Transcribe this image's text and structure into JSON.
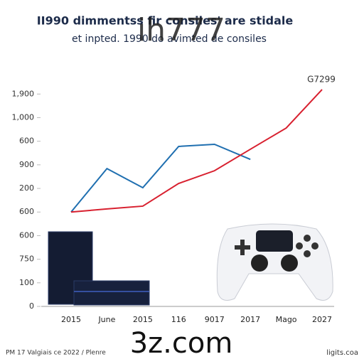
{
  "chart_data": {
    "type": "line",
    "title": "II990 dimmentss fir consiles' are stidale",
    "subtitle": "et inpted. 1990 do avimted de consiles",
    "watermarks": [
      "ih777",
      "3z.com"
    ],
    "annotation": "G7299",
    "footer_left": "PM 17 Valgiais ce 2022 / Plenre",
    "footer_right": "ligits.coa",
    "categories": [
      "2015",
      "June",
      "2015",
      "116",
      "9017",
      "2017",
      "Mago",
      "2027"
    ],
    "series": [
      {
        "color": "#1f6fb0",
        "values": [
          400,
          584,
          503,
          678,
          687,
          623,
          null,
          null
        ]
      },
      {
        "color": "#d8202f",
        "values": [
          400,
          413,
          425,
          521,
          575,
          666,
          756,
          919
        ]
      }
    ],
    "ylim": [
      0,
      940
    ],
    "yticks": [
      0,
      100,
      {
        "value": 200,
        "label": "750"
      },
      {
        "value": 300,
        "label": "600"
      },
      {
        "value": 400,
        "label": "600"
      },
      {
        "value": 500,
        "label": "200"
      },
      {
        "value": 600,
        "label": "900"
      },
      {
        "value": 700,
        "label": "600"
      },
      {
        "value": 800,
        "label": "1,000"
      },
      {
        "value": 900,
        "label": "1,900"
      }
    ],
    "grid": false
  }
}
